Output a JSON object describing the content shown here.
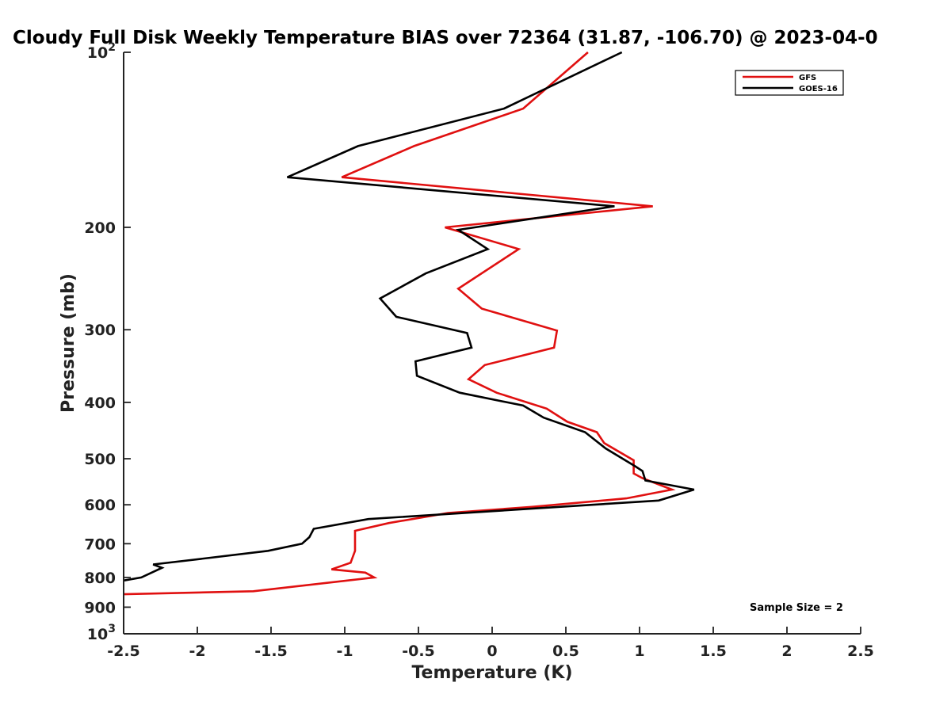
{
  "chart_data": {
    "type": "line",
    "title": "Cloudy Full Disk Weekly Temperature BIAS over 72364 (31.87, -106.70) @ 2023-04-0",
    "xlabel": "Temperature (K)",
    "ylabel": "Pressure (mb)",
    "xlim": [
      -2.5,
      2.5
    ],
    "ylim": [
      100,
      1000
    ],
    "y_scale": "log",
    "y_reversed": true,
    "x_ticks": [
      {
        "value": -2.5,
        "label": "-2.5"
      },
      {
        "value": -2,
        "label": "-2"
      },
      {
        "value": -1.5,
        "label": "-1.5"
      },
      {
        "value": -1,
        "label": "-1"
      },
      {
        "value": -0.5,
        "label": "-0.5"
      },
      {
        "value": 0,
        "label": "0"
      },
      {
        "value": 0.5,
        "label": "0.5"
      },
      {
        "value": 1,
        "label": "1"
      },
      {
        "value": 1.5,
        "label": "1.5"
      },
      {
        "value": 2,
        "label": "2"
      },
      {
        "value": 2.5,
        "label": "2.5"
      }
    ],
    "y_ticks": [
      {
        "value": 100,
        "label": "10",
        "exp": "2"
      },
      {
        "value": 200,
        "label": "200"
      },
      {
        "value": 300,
        "label": "300"
      },
      {
        "value": 400,
        "label": "400"
      },
      {
        "value": 500,
        "label": "500"
      },
      {
        "value": 600,
        "label": "600"
      },
      {
        "value": 700,
        "label": "700"
      },
      {
        "value": 800,
        "label": "800"
      },
      {
        "value": 900,
        "label": "900"
      },
      {
        "value": 1000,
        "label": "10",
        "exp": "3"
      }
    ],
    "legend_position": "top-right",
    "annotation": "Sample Size = 2",
    "series": [
      {
        "name": "GFS",
        "color": "#e01010",
        "points": [
          {
            "x": 0.65,
            "p": 100
          },
          {
            "x": 0.21,
            "p": 125
          },
          {
            "x": -0.53,
            "p": 145
          },
          {
            "x": -1.02,
            "p": 164
          },
          {
            "x": 1.09,
            "p": 184
          },
          {
            "x": -0.32,
            "p": 200
          },
          {
            "x": 0.18,
            "p": 218
          },
          {
            "x": -0.23,
            "p": 255
          },
          {
            "x": -0.07,
            "p": 276
          },
          {
            "x": 0.44,
            "p": 301
          },
          {
            "x": 0.42,
            "p": 322
          },
          {
            "x": -0.05,
            "p": 345
          },
          {
            "x": -0.16,
            "p": 365
          },
          {
            "x": 0.03,
            "p": 385
          },
          {
            "x": 0.37,
            "p": 410
          },
          {
            "x": 0.51,
            "p": 432
          },
          {
            "x": 0.71,
            "p": 450
          },
          {
            "x": 0.76,
            "p": 470
          },
          {
            "x": 0.96,
            "p": 503
          },
          {
            "x": 0.96,
            "p": 530
          },
          {
            "x": 1.02,
            "p": 540
          },
          {
            "x": 1.22,
            "p": 565
          },
          {
            "x": 0.91,
            "p": 585
          },
          {
            "x": 0.27,
            "p": 605
          },
          {
            "x": -0.3,
            "p": 620
          },
          {
            "x": -0.7,
            "p": 645
          },
          {
            "x": -0.93,
            "p": 665
          },
          {
            "x": -0.93,
            "p": 720
          },
          {
            "x": -0.96,
            "p": 755
          },
          {
            "x": -1.09,
            "p": 775
          },
          {
            "x": -0.86,
            "p": 785
          },
          {
            "x": -0.8,
            "p": 800
          },
          {
            "x": -1.62,
            "p": 845
          },
          {
            "x": -2.5,
            "p": 855
          }
        ]
      },
      {
        "name": "GOES-16",
        "color": "#000000",
        "points": [
          {
            "x": 0.88,
            "p": 100
          },
          {
            "x": 0.08,
            "p": 125
          },
          {
            "x": -0.91,
            "p": 145
          },
          {
            "x": -1.39,
            "p": 164
          },
          {
            "x": 0.83,
            "p": 184
          },
          {
            "x": -0.23,
            "p": 202
          },
          {
            "x": -0.03,
            "p": 218
          },
          {
            "x": -0.45,
            "p": 240
          },
          {
            "x": -0.76,
            "p": 265
          },
          {
            "x": -0.65,
            "p": 285
          },
          {
            "x": -0.17,
            "p": 304
          },
          {
            "x": -0.14,
            "p": 322
          },
          {
            "x": -0.52,
            "p": 340
          },
          {
            "x": -0.51,
            "p": 360
          },
          {
            "x": -0.22,
            "p": 385
          },
          {
            "x": 0.21,
            "p": 405
          },
          {
            "x": 0.35,
            "p": 425
          },
          {
            "x": 0.63,
            "p": 450
          },
          {
            "x": 0.77,
            "p": 480
          },
          {
            "x": 0.97,
            "p": 515
          },
          {
            "x": 1.02,
            "p": 525
          },
          {
            "x": 1.04,
            "p": 545
          },
          {
            "x": 1.37,
            "p": 565
          },
          {
            "x": 1.13,
            "p": 590
          },
          {
            "x": -0.84,
            "p": 635
          },
          {
            "x": -1.21,
            "p": 660
          },
          {
            "x": -1.24,
            "p": 682
          },
          {
            "x": -1.29,
            "p": 700
          },
          {
            "x": -1.52,
            "p": 720
          },
          {
            "x": -1.91,
            "p": 740
          },
          {
            "x": -2.3,
            "p": 760
          },
          {
            "x": -2.24,
            "p": 770
          },
          {
            "x": -2.38,
            "p": 800
          },
          {
            "x": -2.5,
            "p": 810
          }
        ]
      }
    ]
  },
  "colors": {
    "axis": "#222222",
    "background": "#ffffff"
  }
}
